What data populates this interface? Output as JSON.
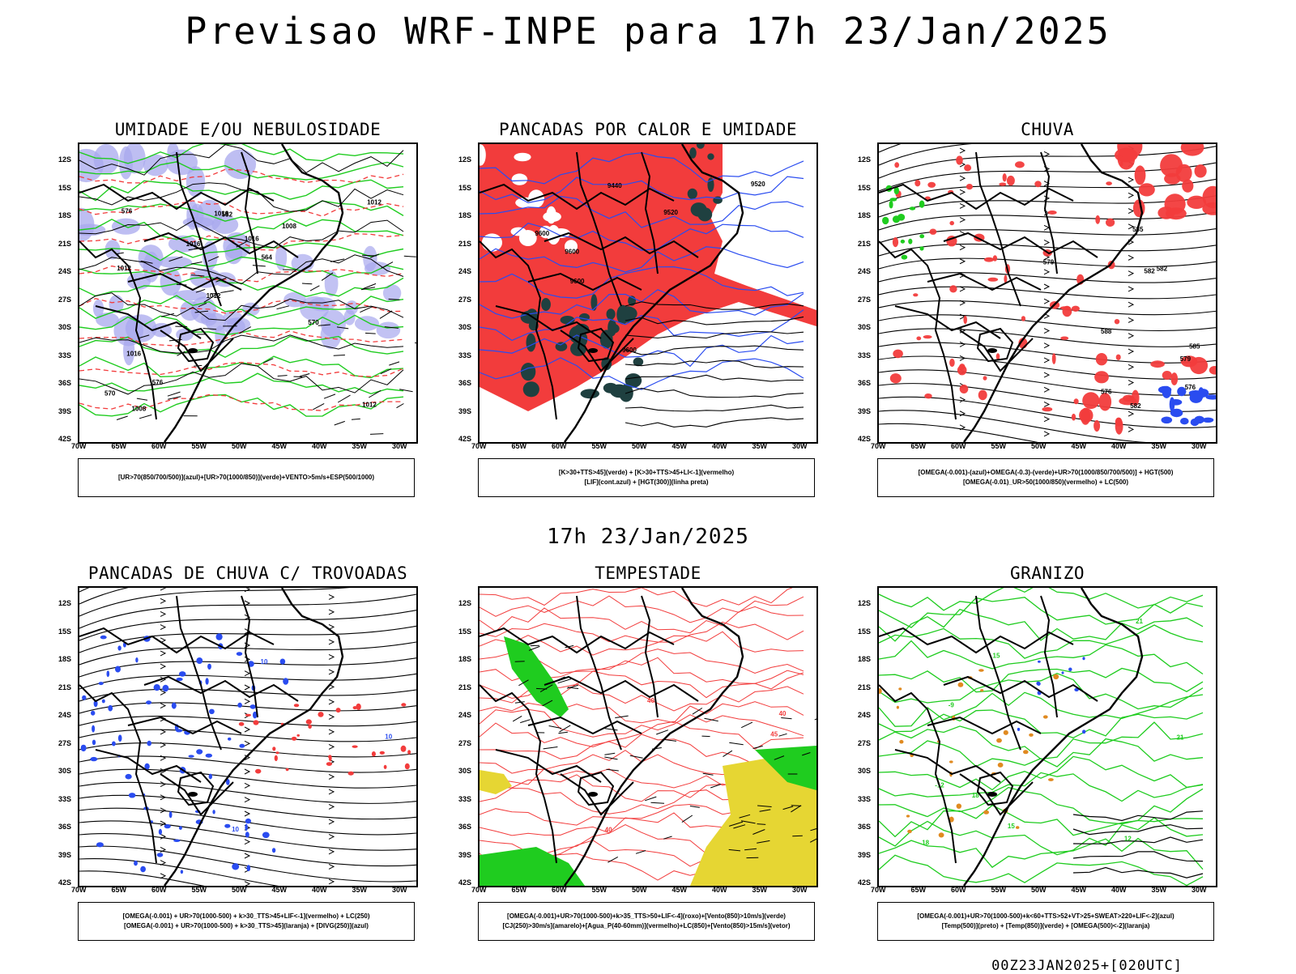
{
  "header": {
    "title": "Previsao WRF-INPE  para 17h 23/Jan/2025",
    "subtitle": "17h 23/Jan/2025",
    "footer": "00Z23JAN2025+[020UTC]"
  },
  "axes": {
    "lat_labels": [
      "12S",
      "15S",
      "18S",
      "21S",
      "24S",
      "27S",
      "30S",
      "33S",
      "36S",
      "39S",
      "42S"
    ],
    "lon_labels": [
      "70W",
      "65W",
      "60W",
      "55W",
      "50W",
      "45W",
      "40W",
      "35W",
      "30W"
    ]
  },
  "panels": [
    {
      "id": "umidade",
      "title": "UMIDADE E/OU NEBULOSIDADE",
      "legend_lines": [
        "[UR>70(850/700/500)](azul)+[UR>70(1000/850)](verde)+VENTO>5m/s+ESP(500/1000)"
      ],
      "contour_labels": [
        "1012",
        "1012",
        "1012",
        "1012",
        "1008",
        "1008",
        "1016",
        "1016",
        "1016",
        "1016",
        "570",
        "576",
        "582",
        "564",
        "570",
        "576"
      ]
    },
    {
      "id": "pancadas-calor",
      "title": "PANCADAS POR CALOR E UMIDADE",
      "legend_lines": [
        "[K>30+TTS>45](verde) + [K>30+TTS>45+LI<-1](vermelho)",
        "[LIF](cont.azul) + [HGT(300)](linha preta)"
      ],
      "contour_labels": [
        "9600",
        "9600",
        "9600",
        "9600",
        "9520",
        "9440",
        "9520"
      ]
    },
    {
      "id": "chuva",
      "title": "CHUVA",
      "legend_lines": [
        "[OMEGA(-0.001)-(azul)+OMEGA(-0.3)-(verde)+UR>70(1000/850/700/500)] + HGT(500)",
        "[OMEGA(-0.01)_UR>50(1000/850)(vermelho) + LC(500)"
      ],
      "contour_labels": [
        "588",
        "585",
        "582",
        "579",
        "576",
        "585",
        "582",
        "579",
        "576",
        "582"
      ]
    },
    {
      "id": "pancadas-trovoadas",
      "title": "PANCADAS DE CHUVA C/ TROVOADAS",
      "legend_lines": [
        "[OMEGA(-0.001) + UR>70(1000-500) + k>30_TTS>45+LIF<-1](vermelho) + LC(250)",
        "[OMEGA(-0.001) + UR>70(1000-500) + k>30_TTS>45](laranja) + [DIVG(250)](azul)"
      ],
      "contour_labels": [
        "10",
        "10",
        "10"
      ]
    },
    {
      "id": "tempestade",
      "title": "TEMPESTADE",
      "legend_lines": [
        "[OMEGA(-0.001)+UR>70(1000-500)+k>35_TTS>50+LIF<-4](roxo)+[Vento(850)>10m/s](verde)",
        "[CJ(250)>30m/s](amarelo)+[Agua_P(40-60mm)](vermelho)+LC(850)+[Vento(850)>15m/s](vetor)"
      ],
      "contour_labels": [
        "40",
        "40",
        "45",
        "40"
      ]
    },
    {
      "id": "granizo",
      "title": "GRANIZO",
      "legend_lines": [
        "[OMEGA(-0.001)+UR>70(1000-500)+k<60+TTS>52+VT>25+SWEAT>220+LIF<-2](azul)",
        "[Temp(500)](preto) + [Temp(850)](verde) + [OMEGA(500)<-2](laranja)"
      ],
      "contour_labels": [
        "21",
        "18",
        "15",
        "12",
        "-9",
        "-12",
        "21",
        "18",
        "15"
      ]
    }
  ],
  "colors": {
    "red": "#f23c3c",
    "blue": "#2a4cf0",
    "green": "#1fcc1f",
    "lavender": "#a8a8ee",
    "darkteal": "#1f4040",
    "yellow": "#e6d633",
    "orange": "#e08a20"
  }
}
